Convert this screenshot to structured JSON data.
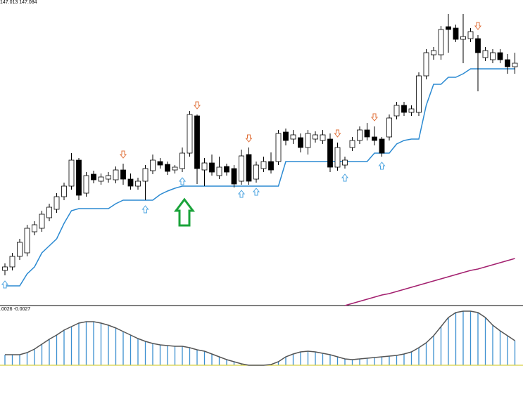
{
  "chart_data": [
    {
      "type": "candlestick",
      "title": "147.013 147.084",
      "ylim": [
        0,
        435
      ],
      "open": [
        50,
        55,
        70,
        75,
        105,
        110,
        125,
        137,
        155,
        170,
        207,
        160,
        187,
        177,
        180,
        179,
        193,
        180,
        170,
        177,
        192,
        205,
        201,
        193,
        195,
        217,
        270,
        193,
        203,
        185,
        198,
        195,
        177,
        215,
        180,
        195,
        205,
        205,
        247,
        237,
        239,
        225,
        237,
        235,
        237,
        197,
        200,
        225,
        235,
        250,
        240,
        237,
        240,
        270,
        285,
        275,
        275,
        327,
        357,
        357,
        397,
        395,
        379,
        380,
        380,
        353,
        350,
        360,
        350,
        340
      ],
      "high": [
        60,
        75,
        95,
        115,
        120,
        135,
        145,
        160,
        175,
        217,
        210,
        190,
        192,
        188,
        190,
        198,
        202,
        188,
        182,
        200,
        215,
        210,
        205,
        200,
        225,
        277,
        272,
        210,
        215,
        212,
        202,
        200,
        222,
        225,
        205,
        212,
        218,
        250,
        252,
        250,
        245,
        250,
        248,
        250,
        245,
        232,
        212,
        240,
        255,
        260,
        255,
        240,
        272,
        290,
        290,
        285,
        332,
        365,
        368,
        398,
        415,
        400,
        415,
        395,
        385,
        368,
        365,
        365,
        358,
        360
      ],
      "low": [
        43,
        50,
        65,
        70,
        100,
        105,
        120,
        132,
        150,
        165,
        150,
        155,
        174,
        172,
        175,
        174,
        172,
        165,
        165,
        150,
        187,
        195,
        186,
        188,
        190,
        212,
        173,
        170,
        185,
        180,
        185,
        168,
        172,
        172,
        175,
        190,
        188,
        200,
        228,
        230,
        218,
        215,
        232,
        230,
        190,
        192,
        195,
        220,
        230,
        235,
        228,
        212,
        235,
        265,
        270,
        270,
        270,
        322,
        350,
        350,
        360,
        375,
        345,
        375,
        305,
        348,
        345,
        345,
        330,
        330
      ],
      "close": [
        55,
        70,
        90,
        110,
        115,
        130,
        140,
        155,
        170,
        207,
        157,
        185,
        179,
        183,
        185,
        193,
        180,
        170,
        177,
        195,
        207,
        200,
        191,
        197,
        217,
        272,
        195,
        203,
        190,
        197,
        190,
        173,
        213,
        177,
        200,
        205,
        193,
        245,
        235,
        243,
        225,
        245,
        243,
        243,
        197,
        225,
        207,
        235,
        250,
        240,
        235,
        217,
        267,
        285,
        275,
        280,
        327,
        360,
        363,
        393,
        393,
        379,
        383,
        390,
        360,
        363,
        360,
        350,
        340,
        345
      ],
      "stop_line": {
        "color": "#2b8ad2",
        "values": [
          28,
          28,
          28,
          45,
          55,
          75,
          85,
          95,
          117,
          135,
          138,
          138,
          138,
          138,
          138,
          145,
          150,
          150,
          150,
          150,
          150,
          158,
          163,
          167,
          170,
          170,
          170,
          170,
          170,
          170,
          170,
          170,
          170,
          170,
          170,
          170,
          170,
          170,
          205,
          205,
          205,
          205,
          205,
          205,
          205,
          205,
          205,
          205,
          205,
          205,
          217,
          217,
          217,
          230,
          235,
          237,
          237,
          285,
          315,
          315,
          325,
          325,
          330,
          337,
          337,
          337,
          337,
          337,
          337,
          337
        ]
      },
      "ma_line": {
        "color": "#a3206f",
        "values": [
          null,
          null,
          null,
          null,
          null,
          null,
          null,
          null,
          null,
          null,
          null,
          null,
          null,
          null,
          null,
          null,
          null,
          null,
          null,
          null,
          null,
          null,
          null,
          null,
          null,
          null,
          null,
          null,
          null,
          null,
          null,
          null,
          null,
          null,
          null,
          null,
          null,
          null,
          null,
          null,
          null,
          null,
          null,
          null,
          null,
          null,
          0,
          3,
          6,
          9,
          12,
          15,
          17,
          20,
          23,
          26,
          29,
          32,
          35,
          38,
          41,
          44,
          47,
          50,
          52,
          55,
          58,
          61,
          64,
          67
        ]
      },
      "up_arrows": [
        0,
        19,
        24,
        32,
        34,
        46,
        51
      ],
      "down_arrows": [
        16,
        26,
        33,
        45,
        50,
        64
      ]
    },
    {
      "type": "histogram-oscillator",
      "title": ".0026 -0.0027",
      "ylim": [
        -68,
        85
      ],
      "values": [
        15,
        15,
        15,
        18,
        23,
        30,
        37,
        43,
        50,
        55,
        60,
        62,
        62,
        60,
        57,
        53,
        48,
        43,
        38,
        34,
        31,
        29,
        28,
        27,
        27,
        25,
        22,
        20,
        16,
        12,
        8,
        5,
        2,
        0,
        0,
        0,
        1,
        5,
        12,
        16,
        19,
        20,
        19,
        17,
        15,
        12,
        9,
        8,
        9,
        10,
        11,
        12,
        13,
        14,
        16,
        19,
        25,
        32,
        42,
        55,
        68,
        75,
        77,
        77,
        75,
        68,
        57,
        49,
        42,
        35
      ]
    }
  ]
}
